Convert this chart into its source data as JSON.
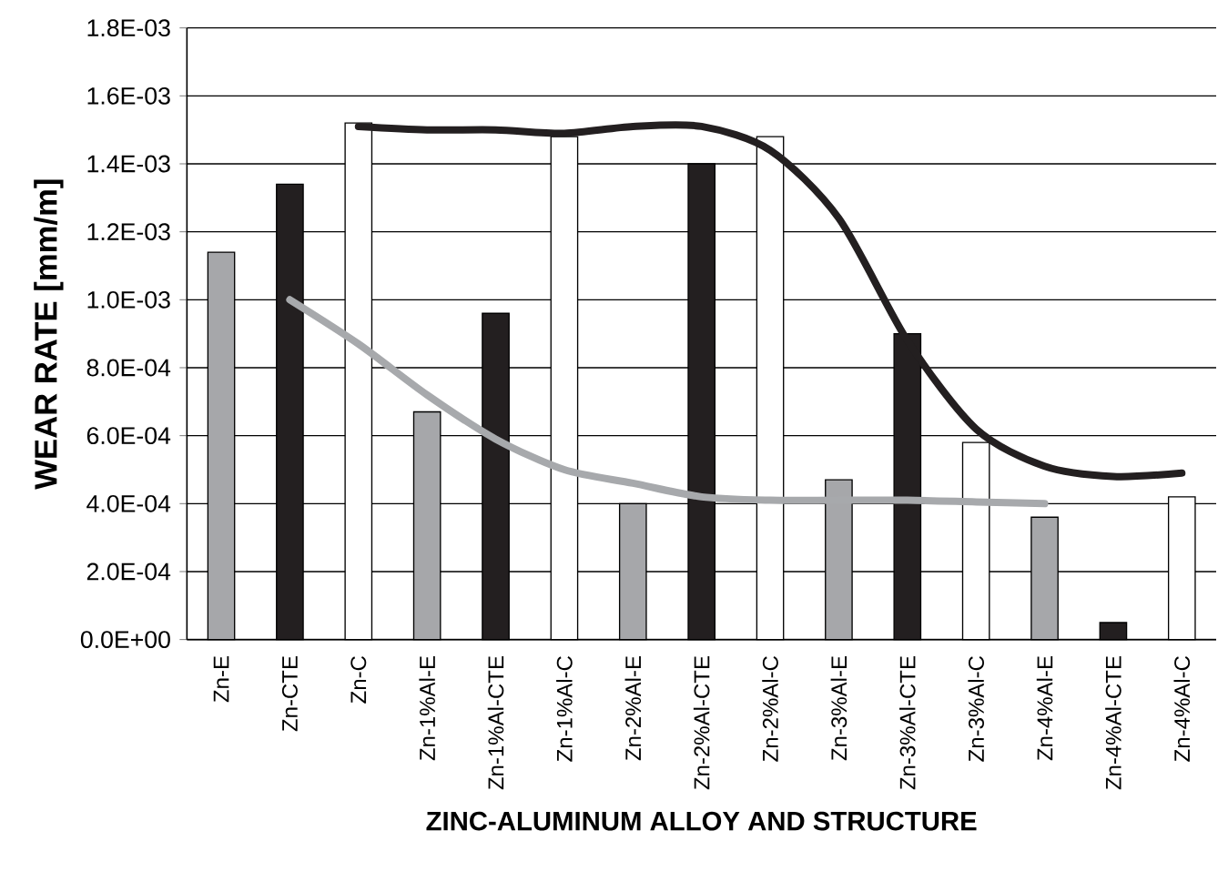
{
  "chart_data": {
    "type": "bar",
    "xlabel": "ZINC-ALUMINUM ALLOY AND STRUCTURE",
    "ylabel": "WEAR RATE [mm/m]",
    "categories": [
      "Zn-E",
      "Zn-CTE",
      "Zn-C",
      "Zn-1%Al-E",
      "Zn-1%Al-CTE",
      "Zn-1%Al-C",
      "Zn-2%Al-E",
      "Zn-2%Al-CTE",
      "Zn-2%Al-C",
      "Zn-3%Al-E",
      "Zn-3%Al-CTE",
      "Zn-3%Al-C",
      "Zn-4%Al-E",
      "Zn-4%Al-CTE",
      "Zn-4%Al-C"
    ],
    "series": [
      {
        "values": [
          0.00114,
          0.00134,
          0.00152,
          0.00067,
          0.00096,
          0.00148,
          0.0004,
          0.0014,
          0.00148,
          0.00047,
          0.0009,
          0.00058,
          0.00036,
          5e-05,
          0.00042
        ],
        "colors": [
          "#a6a7aa",
          "#231f20",
          "#ffffff",
          "#a6a7aa",
          "#231f20",
          "#ffffff",
          "#a6a7aa",
          "#231f20",
          "#ffffff",
          "#a6a7aa",
          "#231f20",
          "#ffffff",
          "#a6a7aa",
          "#231f20",
          "#ffffff"
        ]
      },
      {
        "type": "line",
        "color": "#a7a9ac",
        "values": [
          null,
          0.001,
          0.00087,
          0.00072,
          0.00059,
          0.0005,
          0.00046,
          0.00042,
          0.00041,
          0.00041,
          0.00041,
          0.000405,
          0.0004,
          null,
          null
        ]
      },
      {
        "type": "line",
        "color": "#231f20",
        "values": [
          null,
          null,
          0.00151,
          0.0015,
          0.0015,
          0.00149,
          0.00151,
          0.00151,
          0.00144,
          0.00124,
          0.00088,
          0.00062,
          0.00051,
          0.00048,
          0.00049
        ]
      }
    ],
    "ylim": [
      0,
      0.0018
    ],
    "yticks": [
      {
        "value": 0,
        "label": "0.0E+00"
      },
      {
        "value": 0.0002,
        "label": "2.0E-04"
      },
      {
        "value": 0.0004,
        "label": "4.0E-04"
      },
      {
        "value": 0.0006,
        "label": "6.0E-04"
      },
      {
        "value": 0.0008,
        "label": "8.0E-04"
      },
      {
        "value": 0.001,
        "label": "1.0E-03"
      },
      {
        "value": 0.0012,
        "label": "1.2E-03"
      },
      {
        "value": 0.0014,
        "label": "1.4E-03"
      },
      {
        "value": 0.0016,
        "label": "1.6E-03"
      },
      {
        "value": 0.0018,
        "label": "1.8E-03"
      }
    ],
    "grid": "y"
  }
}
